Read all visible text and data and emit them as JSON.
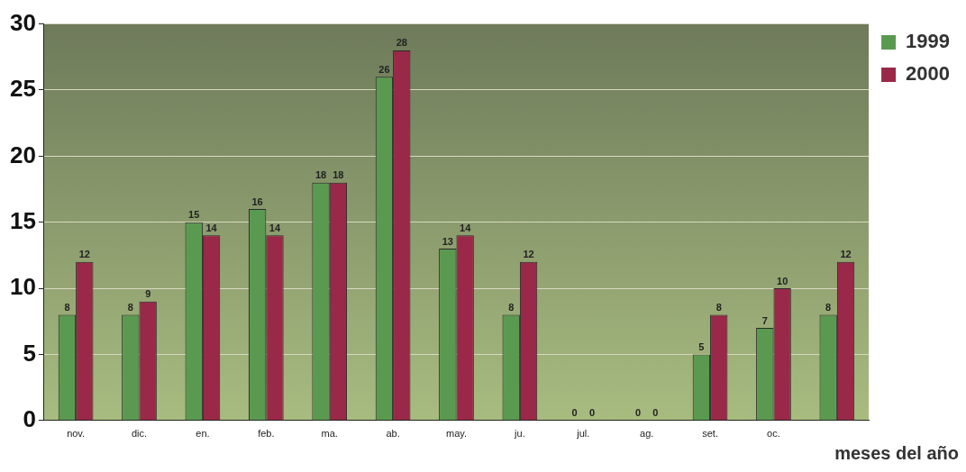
{
  "chart_data": {
    "type": "bar",
    "xlabel": "meses del año",
    "categories": [
      "nov.",
      "dic.",
      "en.",
      "feb.",
      "ma.",
      "ab.",
      "may.",
      "ju.",
      "jul.",
      "ag.",
      "set.",
      "oc.",
      null
    ],
    "series": [
      {
        "name": "1999",
        "color": "#5a9a50",
        "values": [
          8,
          8,
          15,
          16,
          18,
          26,
          13,
          8,
          0,
          0,
          5,
          7,
          8
        ]
      },
      {
        "name": "2000",
        "color": "#9a2848",
        "values": [
          12,
          9,
          14,
          14,
          18,
          28,
          14,
          12,
          0,
          0,
          8,
          10,
          12
        ]
      }
    ],
    "ylim": [
      0,
      30
    ],
    "yticks": [
      0,
      5,
      10,
      15,
      20,
      25,
      30
    ],
    "grid": "y",
    "legend": "top right",
    "data_labels": true
  }
}
